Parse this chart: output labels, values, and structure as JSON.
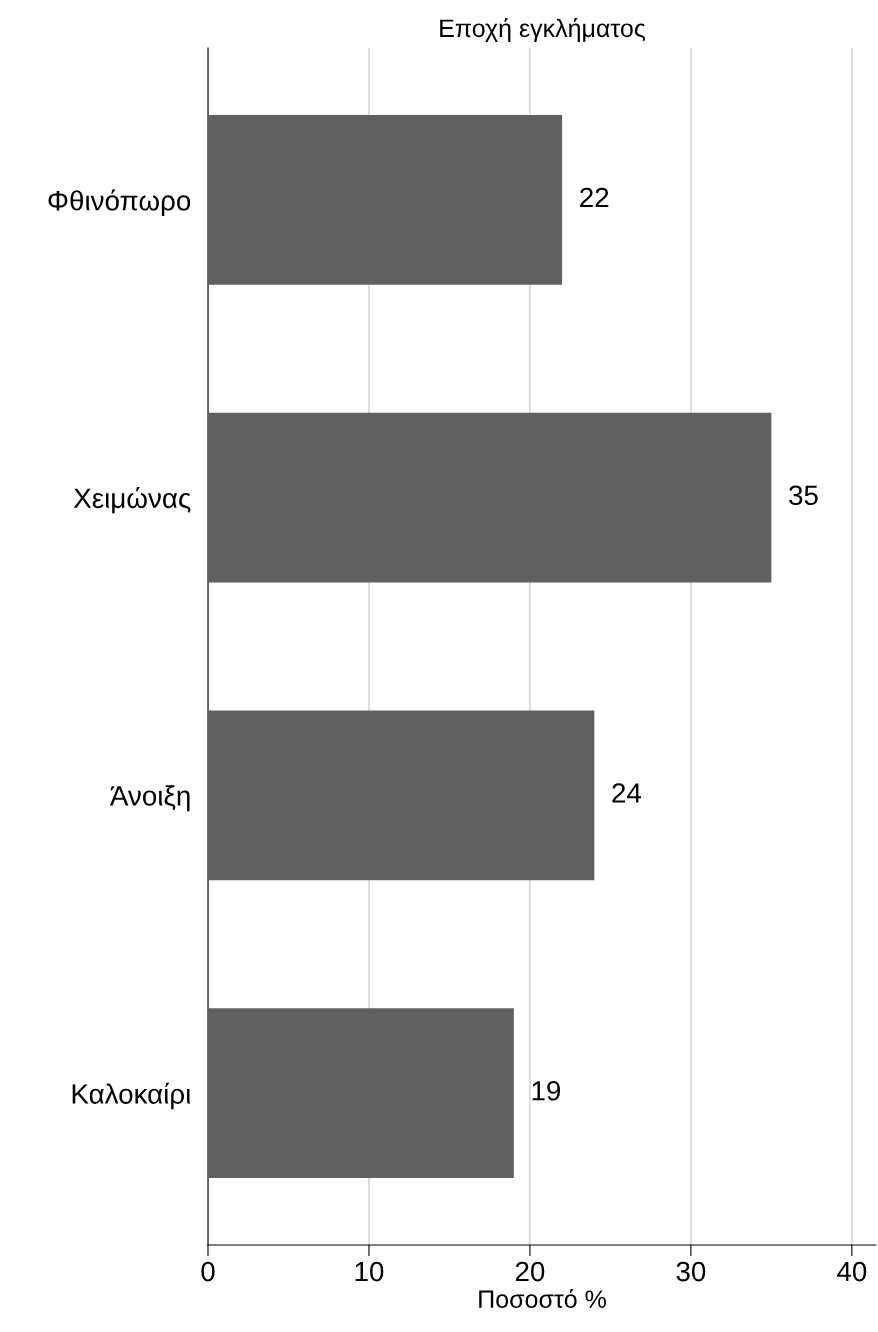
{
  "chart_data": {
    "type": "bar",
    "orientation": "horizontal",
    "title": "Εποχή εγκλήματος",
    "xlabel": "Ποσοστό %",
    "categories": [
      "Φθινόπωρο",
      "Χειμώνας",
      "Άνοιξη",
      "Καλοκαίρι"
    ],
    "values": [
      22,
      35,
      24,
      19
    ],
    "color": "#606060",
    "xlim": [
      0,
      41.5
    ],
    "xticks": [
      0,
      10,
      20,
      30,
      40
    ],
    "grid": "x",
    "data_labels": true
  }
}
